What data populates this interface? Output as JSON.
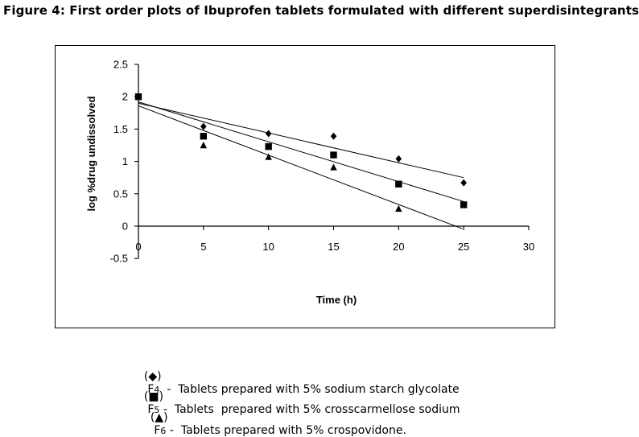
{
  "figure": {
    "title": "Figure 4: First order plots of Ibuprofen tablets formulated with different superdisintegrants"
  },
  "chart_data": {
    "type": "scatter",
    "xlabel": "Time (h)",
    "ylabel": "log %drug undissolved",
    "xlim": [
      0,
      30
    ],
    "ylim": [
      -0.5,
      2.5
    ],
    "xticks": [
      "0",
      "5",
      "10",
      "15",
      "20",
      "25",
      "30"
    ],
    "yticks": [
      "-0.5",
      "0",
      "0.5",
      "1",
      "1.5",
      "2",
      "2.5"
    ],
    "grid": false,
    "legend_position": "bottom",
    "series": [
      {
        "marker": "diamond",
        "color": "#000000",
        "x": [
          0,
          5,
          10,
          15,
          20,
          25
        ],
        "y": [
          2.0,
          1.54,
          1.43,
          1.39,
          1.04,
          0.67
        ],
        "trendline": {
          "x": [
            0,
            25
          ],
          "y": [
            1.9,
            0.75
          ]
        }
      },
      {
        "marker": "square",
        "color": "#000000",
        "x": [
          0,
          5,
          10,
          15,
          20,
          25
        ],
        "y": [
          2.0,
          1.39,
          1.23,
          1.1,
          0.65,
          0.33
        ],
        "trendline": {
          "x": [
            0,
            25
          ],
          "y": [
            1.92,
            0.38
          ]
        }
      },
      {
        "marker": "triangle",
        "color": "#000000",
        "x": [
          0,
          5,
          10,
          15,
          20,
          25
        ],
        "y": [
          2.0,
          1.25,
          1.07,
          0.91,
          0.27,
          null
        ],
        "trendline": {
          "x": [
            0,
            24.9
          ],
          "y": [
            1.86,
            -0.04
          ]
        }
      }
    ]
  },
  "legend": [
    {
      "symbol": "(◆)",
      "code": "F",
      "sub": "4",
      "sep": "  -  ",
      "text": "Tablets prepared with 5% sodium starch glycolate"
    },
    {
      "symbol": "(■)",
      "code": "F",
      "sub": "5",
      "sep": " -  ",
      "text": "Tablets  prepared with 5% crosscarmellose sodium"
    },
    {
      "symbol": "(▲)",
      "code": "F",
      "sub": "6",
      "sep": " -  ",
      "text": "Tablets prepared with 5% crospovidone."
    }
  ]
}
